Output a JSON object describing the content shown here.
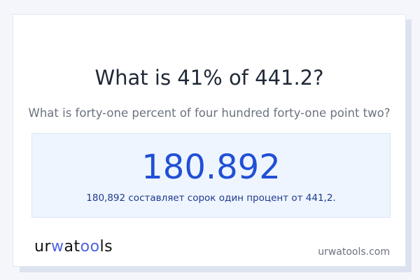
{
  "title": "What is 41% of 441.2?",
  "subtitle": "What is forty-one percent of four hundred forty-one point two?",
  "result": {
    "value": "180.892",
    "description": "180,892 составляет сорок один процент от 441,2."
  },
  "logo": {
    "text": "urwatools",
    "part1": "ur",
    "part2": "w",
    "part3": "at",
    "part4": "oo",
    "part5": "ls"
  },
  "site_url": "urwatools.com",
  "colors": {
    "accent": "#2150d6",
    "logo_accent": "#4f63e0"
  }
}
